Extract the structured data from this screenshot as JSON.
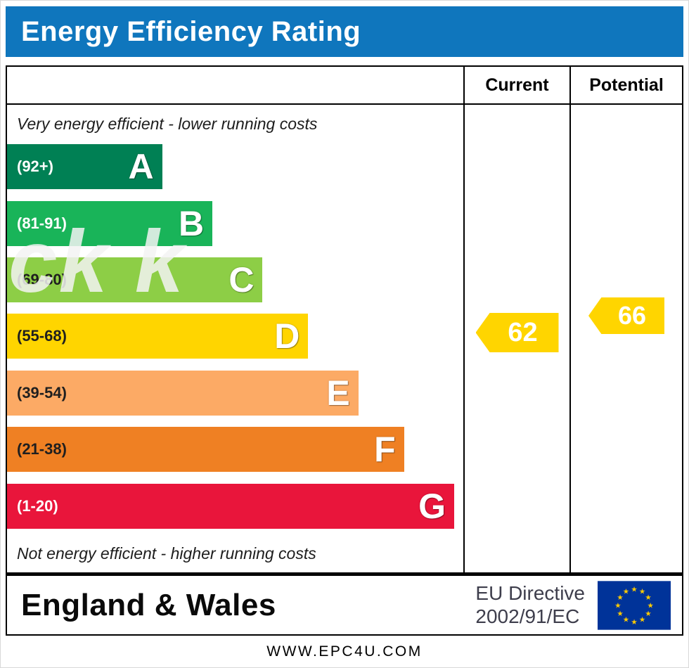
{
  "title": "Energy Efficiency Rating",
  "columns": {
    "current": "Current",
    "potential": "Potential"
  },
  "top_note": "Very energy efficient - lower running costs",
  "bottom_note": "Not energy efficient - higher running costs",
  "watermark": "ck k",
  "bands": [
    {
      "letter": "A",
      "range": "(92+)",
      "color": "#008054",
      "text_color": "#ffffff",
      "width_pct": 34
    },
    {
      "letter": "B",
      "range": "(81-91)",
      "color": "#19b459",
      "text_color": "#ffffff",
      "width_pct": 45
    },
    {
      "letter": "C",
      "range": "(69-80)",
      "color": "#8dce46",
      "text_color": "#1f1f1f",
      "width_pct": 56
    },
    {
      "letter": "D",
      "range": "(55-68)",
      "color": "#ffd500",
      "text_color": "#1f1f1f",
      "width_pct": 66
    },
    {
      "letter": "E",
      "range": "(39-54)",
      "color": "#fcaa65",
      "text_color": "#1f1f1f",
      "width_pct": 77
    },
    {
      "letter": "F",
      "range": "(21-38)",
      "color": "#ef8023",
      "text_color": "#1f1f1f",
      "width_pct": 87
    },
    {
      "letter": "G",
      "range": "(1-20)",
      "color": "#e9153b",
      "text_color": "#ffffff",
      "width_pct": 98
    }
  ],
  "current": {
    "value": "62",
    "color": "#ffd500"
  },
  "potential": {
    "value": "66",
    "color": "#ffd500"
  },
  "footer": {
    "region": "England & Wales",
    "directive_line1": "EU Directive",
    "directive_line2": "2002/91/EC"
  },
  "website": "WWW.EPC4U.COM",
  "colors": {
    "header_bg": "#0f76bd",
    "header_text": "#ffffff",
    "arrow_text": "#ffffff"
  },
  "chart_data": {
    "type": "bar",
    "title": "Energy Efficiency Rating",
    "categories": [
      "A",
      "B",
      "C",
      "D",
      "E",
      "F",
      "G"
    ],
    "band_ranges": [
      "92+",
      "81-91",
      "69-80",
      "55-68",
      "39-54",
      "21-38",
      "1-20"
    ],
    "band_colors": [
      "#008054",
      "#19b459",
      "#8dce46",
      "#ffd500",
      "#fcaa65",
      "#ef8023",
      "#e9153b"
    ],
    "values": [
      34,
      45,
      56,
      66,
      77,
      87,
      98
    ],
    "markers": [
      {
        "name": "Current",
        "value": 62,
        "band": "D",
        "color": "#ffd500"
      },
      {
        "name": "Potential",
        "value": 66,
        "band": "D",
        "color": "#ffd500"
      }
    ],
    "xlabel": "",
    "ylabel": "",
    "legend": false,
    "notes": [
      "Very energy efficient - lower running costs",
      "Not energy efficient - higher running costs"
    ]
  }
}
